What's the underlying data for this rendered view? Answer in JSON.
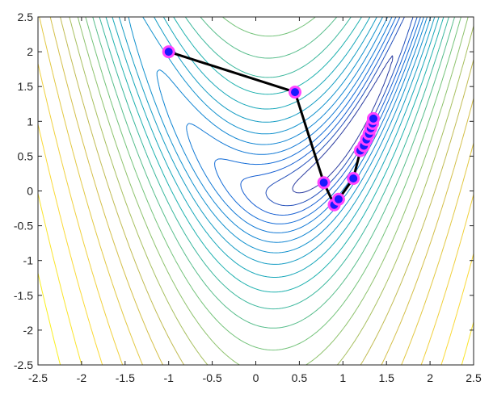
{
  "chart_data": {
    "type": "contour",
    "title": "",
    "xlabel": "",
    "ylabel": "",
    "xlim": [
      -2.5,
      2.5
    ],
    "ylim": [
      -2.5,
      2.5
    ],
    "x_ticks": [
      -2.5,
      -2,
      -1.5,
      -1,
      -0.5,
      0,
      0.5,
      1,
      1.5,
      2,
      2.5
    ],
    "y_ticks": [
      -2.5,
      -2,
      -1.5,
      -1,
      -0.5,
      0,
      0.5,
      1,
      1.5,
      2,
      2.5
    ],
    "x_tick_labels": [
      "-2.5",
      "-2",
      "-1.5",
      "-1",
      "-0.5",
      "0",
      "0.5",
      "1",
      "1.5",
      "2",
      "2.5"
    ],
    "y_tick_labels": [
      "-2.5",
      "-2",
      "-1.5",
      "-1",
      "-0.5",
      "0",
      "0.5",
      "1",
      "1.5",
      "2",
      "2.5"
    ],
    "grid": false,
    "contour": {
      "function": "rosenbrock-like valley",
      "colormap": "parula",
      "levels": 22
    },
    "path": {
      "line_color": "#000000",
      "marker_face": "#1a1aff",
      "marker_edge": "#ff44ff",
      "points": [
        [
          -1.0,
          2.0
        ],
        [
          0.45,
          1.42
        ],
        [
          0.78,
          0.12
        ],
        [
          0.9,
          -0.2
        ],
        [
          0.95,
          -0.12
        ],
        [
          1.12,
          0.18
        ],
        [
          1.2,
          0.58
        ],
        [
          1.24,
          0.65
        ],
        [
          1.27,
          0.74
        ],
        [
          1.3,
          0.82
        ],
        [
          1.32,
          0.9
        ],
        [
          1.34,
          0.97
        ],
        [
          1.35,
          1.04
        ]
      ]
    }
  }
}
